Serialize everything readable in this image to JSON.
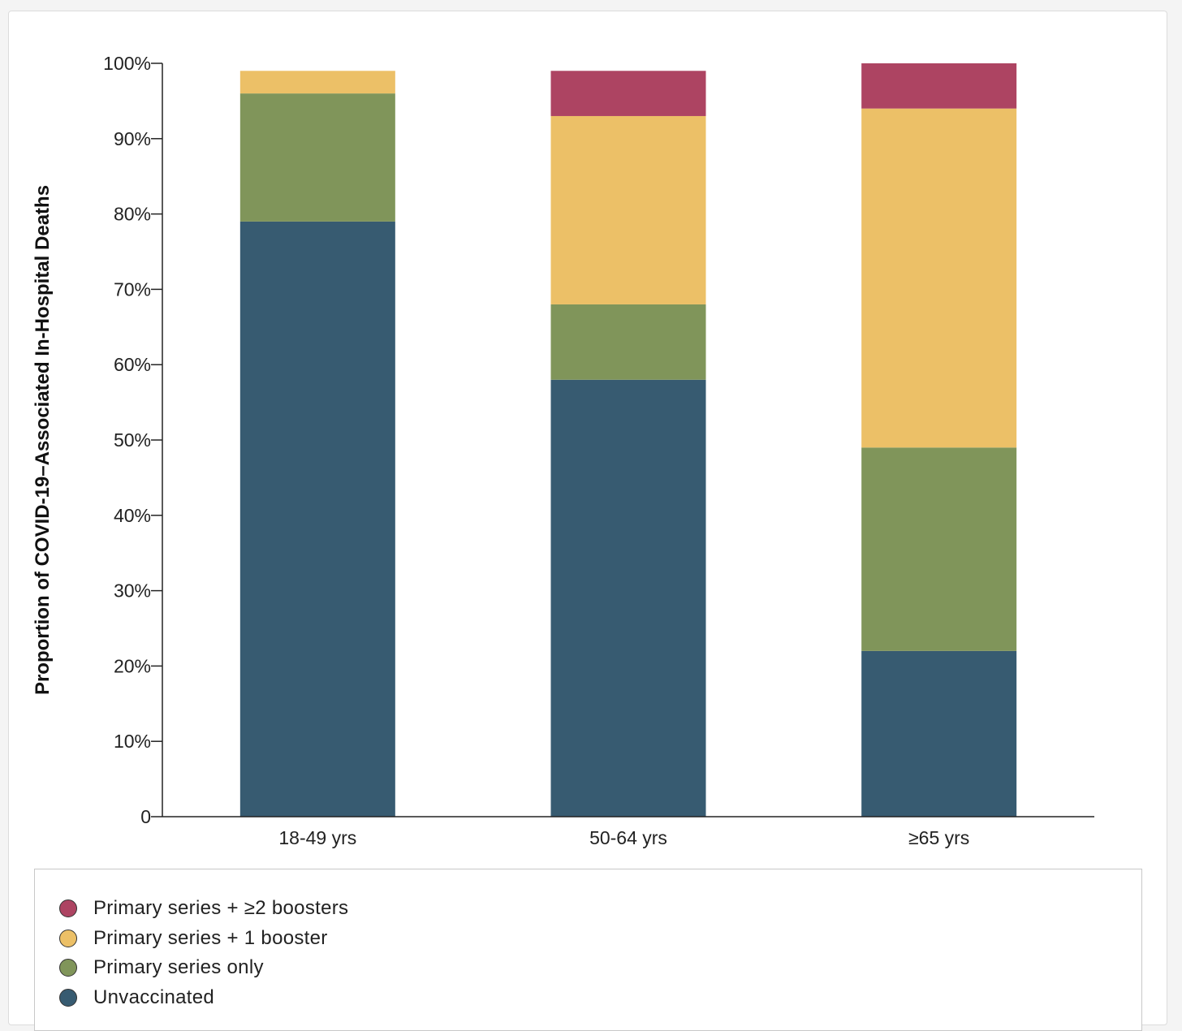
{
  "chart_data": {
    "type": "bar",
    "stacked": true,
    "ylabel": "Proportion of COVID-19–Associated In-Hospital Deaths",
    "ylim": [
      0,
      100
    ],
    "yticks": [
      "0",
      "10%",
      "20%",
      "30%",
      "40%",
      "50%",
      "60%",
      "70%",
      "80%",
      "90%",
      "100%"
    ],
    "categories": [
      "18-49 yrs",
      "50-64 yrs",
      "≥65 yrs"
    ],
    "series": [
      {
        "name": "Unvaccinated",
        "color": "#375b71",
        "values": [
          79,
          58,
          22
        ]
      },
      {
        "name": "Primary series only",
        "color": "#80955a",
        "values": [
          17,
          10,
          27
        ]
      },
      {
        "name": "Primary series + 1 booster",
        "color": "#ecc067",
        "values": [
          3,
          25,
          45
        ]
      },
      {
        "name": "Primary series + ≥2 boosters",
        "color": "#ad4462",
        "values": [
          0,
          6,
          6
        ]
      }
    ],
    "legend": {
      "placement": "bottom",
      "order": [
        "Primary series + ≥2 boosters",
        "Primary series + 1 booster",
        "Primary series only",
        "Unvaccinated"
      ]
    },
    "grid": false
  }
}
